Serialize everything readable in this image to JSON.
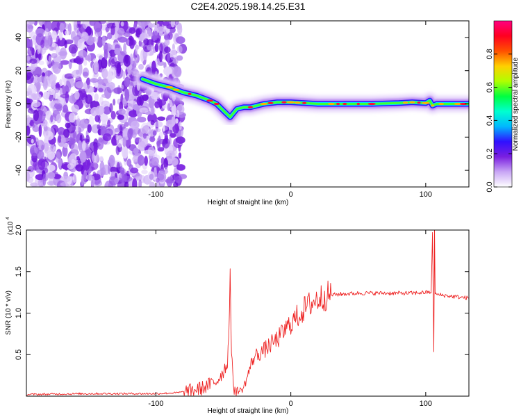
{
  "figure": {
    "title": "C2E4.2025.198.14.25.E31"
  },
  "chart_data": [
    {
      "type": "heatmap",
      "xlabel": "Height of straight line (km)",
      "ylabel": "Frequency (Hz)",
      "xlim": [
        -196,
        132
      ],
      "ylim": [
        -50,
        50
      ],
      "xticks": [
        -100,
        0,
        100
      ],
      "yticks": [
        -40,
        -20,
        0,
        20,
        40
      ],
      "noise_region": {
        "x": [
          -196,
          -80
        ],
        "y": [
          -50,
          50
        ]
      },
      "ridge": {
        "x": [
          -110,
          -100,
          -90,
          -80,
          -70,
          -60,
          -55,
          -50,
          -45,
          -40,
          -35,
          -30,
          -20,
          -10,
          0,
          10,
          20,
          30,
          40,
          60,
          80,
          90,
          100,
          103,
          105,
          108,
          115,
          120,
          132
        ],
        "y": [
          15,
          12,
          10,
          7,
          5,
          2,
          0,
          -4,
          -8,
          -3,
          -2,
          -2,
          0,
          1,
          1,
          0.5,
          0,
          0,
          0,
          0,
          0.5,
          1,
          0.5,
          2,
          -1,
          0,
          0,
          0,
          0
        ]
      },
      "colorbar": {
        "label": "Normalized spectral amplitude",
        "range": [
          0,
          1
        ],
        "ticks": [
          "0.0",
          "0.2",
          "0.4",
          "0.6",
          "0.8"
        ],
        "colors": [
          "#ffffff",
          "#c9a6f5",
          "#7a1fe0",
          "#3010ff",
          "#00b8ff",
          "#00ffd0",
          "#00ff40",
          "#b0ff00",
          "#ffd000",
          "#ff5000",
          "#ff0020",
          "#ff0080"
        ]
      }
    },
    {
      "type": "line",
      "xlabel": "Height of straight line (km)",
      "ylabel": "SNR (10 * v/v)",
      "multiplier_label": "(x10",
      "multiplier_exp": "4",
      "xlim": [
        -196,
        132
      ],
      "ylim": [
        0,
        2.0
      ],
      "xticks": [
        -100,
        0,
        100
      ],
      "yticks": [
        "0.5",
        "1.0",
        "1.5",
        "2.0"
      ],
      "color": "#ee2222",
      "series": [
        {
          "x": [
            -196,
            -150,
            -100,
            -85,
            -75,
            -65,
            -55,
            -50,
            -47,
            -46,
            -45,
            -44,
            -43,
            -42,
            -41,
            -38,
            -35,
            -30,
            -28,
            -25,
            -20,
            -15,
            -10,
            -5,
            0,
            5,
            10,
            15,
            20,
            25,
            30,
            40,
            50,
            60,
            70,
            80,
            90,
            100,
            104,
            105,
            106,
            106.5,
            107,
            108,
            110,
            120,
            132
          ],
          "y": [
            0.02,
            0.03,
            0.03,
            0.04,
            0.06,
            0.1,
            0.18,
            0.3,
            0.4,
            0.75,
            1.48,
            0.55,
            0.2,
            0.1,
            0.08,
            0.06,
            0.1,
            0.35,
            0.45,
            0.5,
            0.55,
            0.62,
            0.68,
            0.78,
            0.88,
            0.96,
            1.05,
            1.12,
            1.17,
            1.2,
            1.22,
            1.23,
            1.24,
            1.24,
            1.24,
            1.24,
            1.24,
            1.25,
            1.25,
            1.95,
            0.55,
            2.02,
            1.25,
            1.22,
            1.22,
            1.2,
            1.18
          ]
        }
      ]
    }
  ]
}
